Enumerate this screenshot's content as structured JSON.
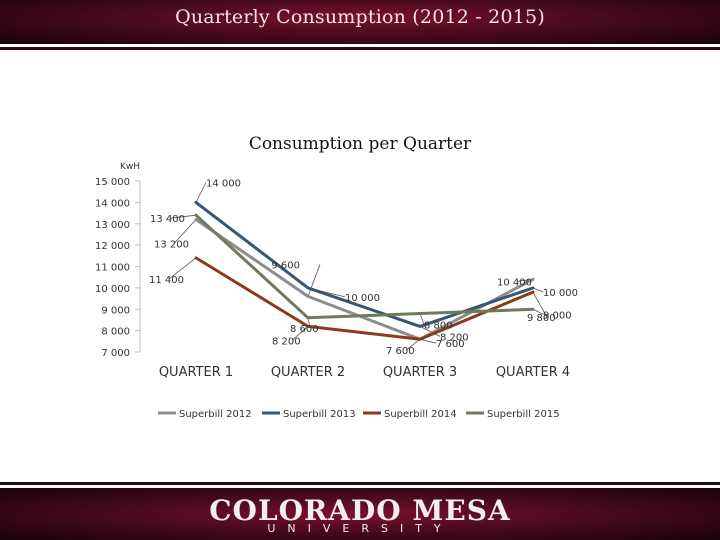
{
  "header": {
    "title": "Quarterly Consumption (2012 - 2015)"
  },
  "footer": {
    "logo_main": "COLORADO MESA",
    "logo_sub": "UNIVERSITY"
  },
  "colors": {
    "band": "#4a0a1e",
    "s2012": "#8c8c8c",
    "s2013": "#3a5570",
    "s2014": "#8b3a1e",
    "s2015": "#6e7b5a"
  },
  "chart_data": {
    "type": "line",
    "title": "Consumption per Quarter",
    "ylabel": "KwH",
    "ylim": [
      7000,
      15000
    ],
    "yticks": [
      7000,
      8000,
      9000,
      10000,
      11000,
      12000,
      13000,
      14000,
      15000
    ],
    "ytick_labels": [
      "7 000",
      "8 000",
      "9 000",
      "10 000",
      "11 000",
      "12 000",
      "13 000",
      "14 000",
      "15 000"
    ],
    "categories": [
      "QUARTER 1",
      "QUARTER 2",
      "QUARTER 3",
      "QUARTER 4"
    ],
    "legend_position": "bottom",
    "series": [
      {
        "name": "Superbill 2012",
        "color": "#8c8c8c",
        "values": [
          13200,
          9600,
          7600,
          10400
        ],
        "labels": [
          "13 200",
          "9 600",
          "7 600",
          "10 400"
        ]
      },
      {
        "name": "Superbill 2013",
        "color": "#3a5570",
        "values": [
          14000,
          10000,
          8200,
          10000
        ],
        "labels": [
          "14 000",
          "10 000",
          "8 200",
          "10 000"
        ]
      },
      {
        "name": "Superbill 2014",
        "color": "#8b3a1e",
        "values": [
          11400,
          8200,
          7600,
          9800
        ],
        "labels": [
          "11 400",
          "8 200",
          "7 600",
          "9 800"
        ]
      },
      {
        "name": "Superbill 2015",
        "color": "#6e7b5a",
        "values": [
          13400,
          8600,
          8800,
          9000
        ],
        "labels": [
          "13 400",
          "8 600",
          "8 800",
          "9 000"
        ]
      }
    ]
  }
}
